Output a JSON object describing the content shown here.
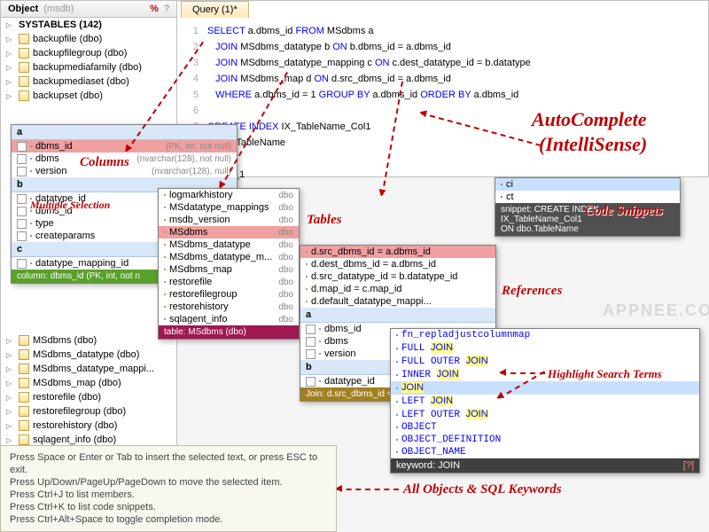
{
  "object_panel": {
    "title": "Object",
    "db": "(msdb)",
    "root": "SYSTABLES (142)",
    "items_top": [
      "backupfile (dbo)",
      "backupfilegroup (dbo)",
      "backupmediafamily (dbo)",
      "backupmediaset (dbo)",
      "backupset (dbo)"
    ],
    "items_bottom": [
      "MSdbms (dbo)",
      "MSdbms_datatype (dbo)",
      "MSdbms_datatype_mappi...",
      "MSdbms_map (dbo)",
      "restorefile (dbo)",
      "restorefilegroup (dbo)",
      "restorehistory (dbo)",
      "sqlagent_info (dbo)"
    ]
  },
  "query_tab": {
    "title": "Query (1)*"
  },
  "code": {
    "l1": {
      "a": "SELECT",
      "b": " a.dbms_id ",
      "c": "FROM",
      "d": " MSdbms a"
    },
    "l2": {
      "a": "JOIN",
      "b": " MSdbms_datatype b ",
      "c": "ON",
      "d": " b.dbms_id = a.dbms_id"
    },
    "l3": {
      "a": "JOIN",
      "b": " MSdbms_datatype_mapping c ",
      "c": "ON",
      "d": " c.dest_datatype_id = b.datatype"
    },
    "l4": {
      "a": "JOIN",
      "b": " MSdbms_map d ",
      "c": "ON",
      "d": " d.src_dbms_id = a.dbms_id"
    },
    "l5": {
      "a": "WHERE",
      "b": " a.dbms_id = 1 ",
      "c": "GROUP BY",
      "d": " a.dbms_id ",
      "e": "ORDER BY",
      "f": " a.dbms_id"
    },
    "l7": {
      "a": "CREATE INDEX",
      "b": " IX_TableName_Col1"
    },
    "l8": {
      "a": "N dbo.TableName"
    },
    "l10": {
      "a": "olumn_1"
    }
  },
  "columns_popup": {
    "header": "a",
    "items": [
      {
        "name": "dbms_id",
        "meta": "(PK, int, not null)",
        "sel": true
      },
      {
        "name": "dbms",
        "meta": "(nvarchar(128), not null)"
      },
      {
        "name": "version",
        "meta": "(nvarchar(128), null)"
      }
    ],
    "header2": "b",
    "items2": [
      {
        "name": "datatype_id"
      },
      {
        "name": "dbms_id"
      },
      {
        "name": "type"
      },
      {
        "name": "createparams"
      }
    ],
    "header3": "c",
    "items3": [
      {
        "name": "datatype_mapping_id"
      }
    ],
    "foot": "column: dbms_id (PK, int, not n"
  },
  "tables_popup": {
    "items": [
      "logmarkhistory",
      "MSdatatype_mappings",
      "msdb_version",
      "MSdbms",
      "MSdbms_datatype",
      "MSdbms_datatype_m...",
      "MSdbms_map",
      "restorefile",
      "restorefilegroup",
      "restorehistory",
      "sqlagent_info"
    ],
    "sel_index": 3,
    "foot": "table: MSdbms (dbo)"
  },
  "refs_popup": {
    "items": [
      "d.src_dbms_id = a.dbms_id",
      "d.dest_dbms_id = a.dbms_id",
      "d.src_datatype_id = b.datatype_id",
      "d.map_id = c.map_id",
      "d.default_datatype_mappi..."
    ],
    "header2": "a",
    "cols2": [
      "dbms_id",
      "dbms",
      "version"
    ],
    "header3": "b",
    "cols3": [
      "datatype_id"
    ],
    "foot": "Join: d.src_dbms_id = a.d"
  },
  "snippets_popup": {
    "items": [
      "ci",
      "ct"
    ],
    "foot": "snippet: CREATE INDEX IX_TableName_Col1\nON dbo.TableName"
  },
  "keywords_popup": {
    "items": [
      "fn_repladjustcolumnmap",
      "FULL JOIN",
      "FULL OUTER JOIN",
      "INNER JOIN",
      "JOIN",
      "LEFT JOIN",
      "LEFT OUTER JOIN",
      "OBJECT",
      "OBJECT_DEFINITION",
      "OBJECT_NAME"
    ],
    "sel_index": 4,
    "foot": "keyword: JOIN"
  },
  "callouts": {
    "columns": "Columns",
    "multisel": "Multiple Selection",
    "tables": "Tables",
    "references": "References",
    "snippets": "Code Snippets",
    "highlight": "Highlight Search Terms",
    "allobj": "All Objects & SQL Keywords",
    "auto1": "AutoComplete",
    "auto2": "(IntelliSense)"
  },
  "tooltip": {
    "l1": "Press Space or Enter or Tab to insert the selected text, or press ESC to exit.",
    "l2": "Press Up/Down/PageUp/PageDown to move the selected item.",
    "l3": "Press Ctrl+J to list members.",
    "l4": "Press Ctrl+K to list code snippets.",
    "l5": "Press Ctrl+Alt+Space to toggle completion mode."
  },
  "watermark": "APPNEE.COM",
  "colors": {
    "col_foot": "#5aa02c",
    "tbl_foot": "#a01850",
    "join_foot": "#a08020",
    "snip_foot": "#505050",
    "kw_foot": "#404040"
  }
}
